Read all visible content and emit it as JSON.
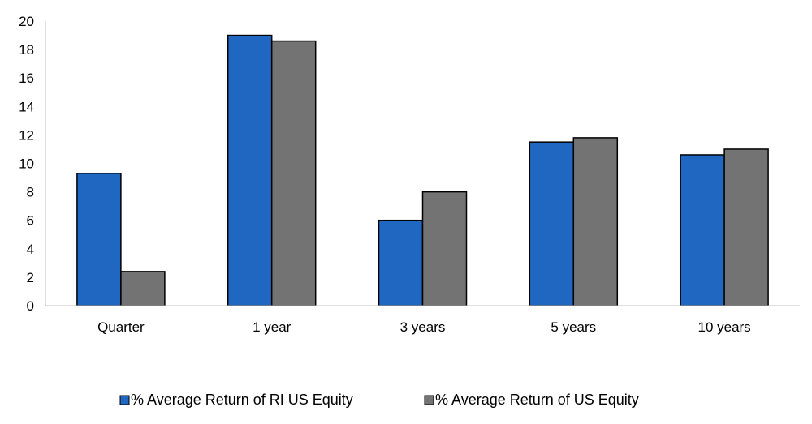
{
  "chart_data": {
    "type": "bar",
    "title": "",
    "xlabel": "",
    "ylabel": "",
    "categories": [
      "Quarter",
      "1 year",
      "3 years",
      "5 years",
      "10 years"
    ],
    "series": [
      {
        "name": "% Average Return of RI US Equity",
        "color": "#1F67C0",
        "values": [
          9.3,
          19.0,
          6.0,
          11.5,
          10.6
        ]
      },
      {
        "name": "% Average Return of US Equity",
        "color": "#737373",
        "values": [
          2.4,
          18.6,
          8.0,
          11.8,
          11.0
        ]
      }
    ],
    "ylim": [
      0,
      20
    ],
    "yticks": [
      0,
      2,
      4,
      6,
      8,
      10,
      12,
      14,
      16,
      18,
      20
    ],
    "grid": false,
    "legend_position": "bottom"
  }
}
